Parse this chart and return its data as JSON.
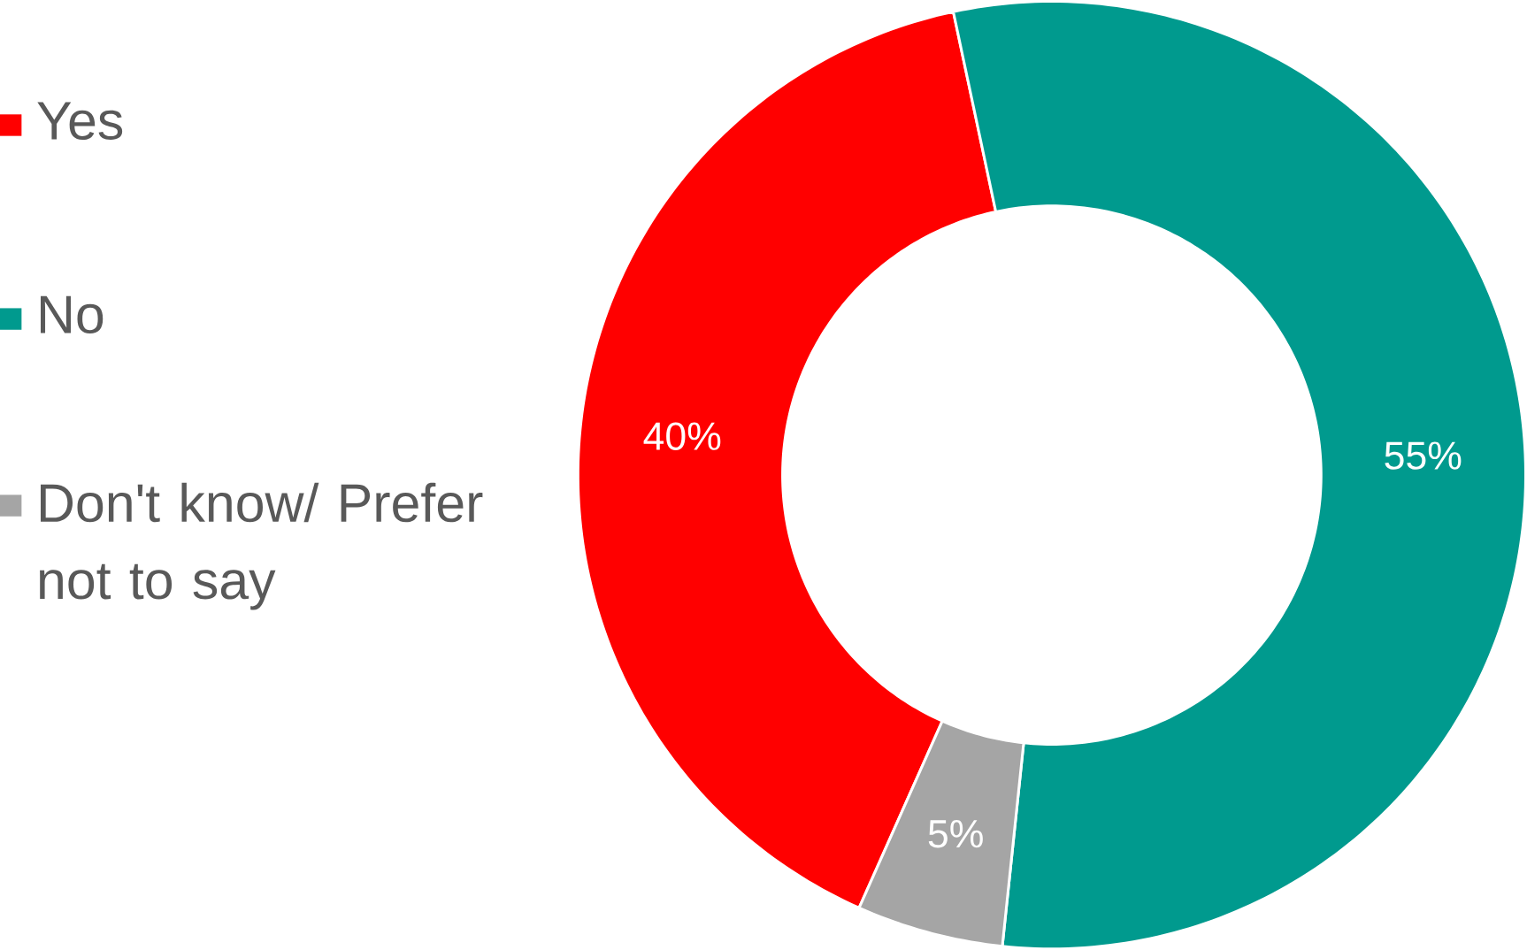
{
  "chart_data": {
    "type": "donut",
    "categories": [
      "Yes",
      "No",
      "Don't know/ Prefer not to say"
    ],
    "values": [
      40,
      55,
      5
    ],
    "colors": [
      "#ff0000",
      "#009a8e",
      "#a5a5a5"
    ],
    "value_labels": [
      "40%",
      "55%",
      "5%"
    ],
    "legend": "left"
  }
}
